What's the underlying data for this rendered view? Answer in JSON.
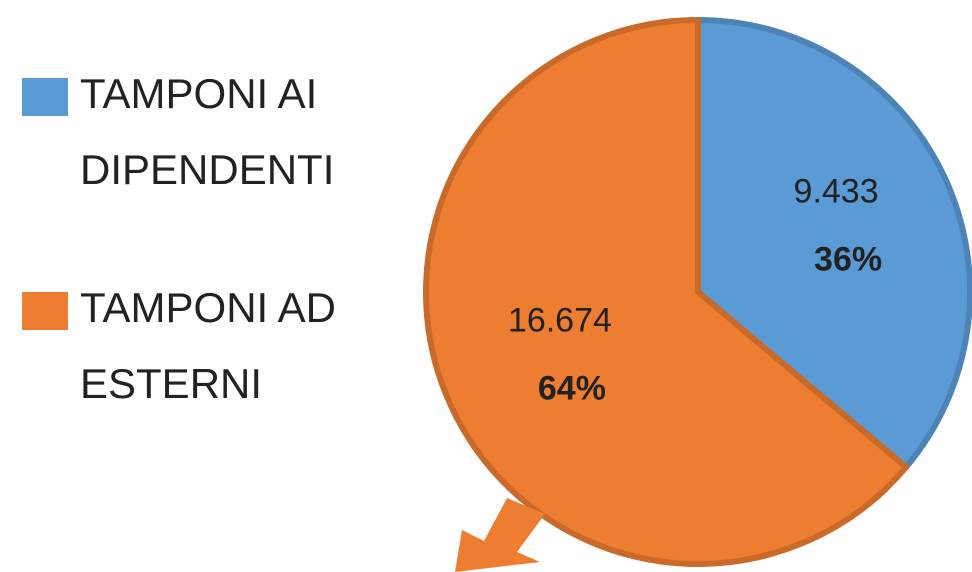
{
  "chart_data": {
    "type": "pie",
    "series": [
      {
        "name": "TAMPONI AI DIPENDENTI",
        "color": "#5b9bd5"
      },
      {
        "name": "TAMPONI AD ESTERNI",
        "color": "#ed7d31"
      }
    ],
    "values": [
      9433,
      16674
    ],
    "value_labels": [
      "9.433",
      "16.674"
    ],
    "percentages": [
      36,
      64
    ],
    "percentage_labels": [
      "36%",
      "64%"
    ],
    "legend": "left"
  }
}
